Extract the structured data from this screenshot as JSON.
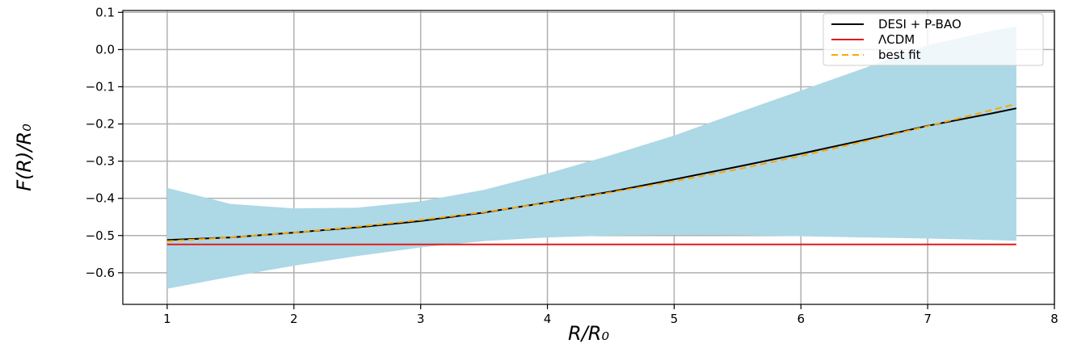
{
  "chart_data": {
    "type": "line",
    "xlabel": "R/R₀",
    "ylabel": "F(R)/R₀",
    "xlim": [
      0.65,
      8.0
    ],
    "ylim": [
      -0.685,
      0.105
    ],
    "xticks": [
      1,
      2,
      3,
      4,
      5,
      6,
      7,
      8
    ],
    "xtick_labels": [
      "1",
      "2",
      "3",
      "4",
      "5",
      "6",
      "7",
      "8"
    ],
    "yticks": [
      -0.6,
      -0.5,
      -0.4,
      -0.3,
      -0.2,
      -0.1,
      0.0,
      0.1
    ],
    "ytick_labels": [
      "−0.6",
      "−0.5",
      "−0.4",
      "−0.3",
      "−0.2",
      "−0.1",
      "0.0",
      "0.1"
    ],
    "grid": true,
    "legend_position": "top-right",
    "band": {
      "color": "#add8e6",
      "x": [
        1.0,
        1.5,
        2.0,
        2.5,
        3.0,
        3.5,
        4.0,
        4.5,
        5.0,
        5.5,
        6.0,
        6.5,
        7.0,
        7.5,
        7.7
      ],
      "upper": [
        -0.372,
        -0.415,
        -0.427,
        -0.425,
        -0.408,
        -0.377,
        -0.333,
        -0.284,
        -0.231,
        -0.17,
        -0.11,
        -0.05,
        0.012,
        0.05,
        0.062
      ],
      "lower": [
        -0.643,
        -0.611,
        -0.581,
        -0.555,
        -0.532,
        -0.515,
        -0.505,
        -0.5,
        -0.498,
        -0.499,
        -0.502,
        -0.505,
        -0.508,
        -0.512,
        -0.514
      ]
    },
    "series": [
      {
        "name": "DESI + P-BAO",
        "color": "#000000",
        "style": "solid",
        "x": [
          1.0,
          1.5,
          2.0,
          2.5,
          3.0,
          3.5,
          4.0,
          4.5,
          5.0,
          5.5,
          6.0,
          6.5,
          7.0,
          7.5,
          7.7
        ],
        "y": [
          -0.512,
          -0.505,
          -0.492,
          -0.478,
          -0.461,
          -0.438,
          -0.411,
          -0.382,
          -0.349,
          -0.315,
          -0.28,
          -0.243,
          -0.205,
          -0.172,
          -0.158
        ]
      },
      {
        "name": "ΛCDM",
        "color": "#e31a1c",
        "style": "solid",
        "x": [
          1.0,
          7.7
        ],
        "y": [
          -0.524,
          -0.524
        ]
      },
      {
        "name": "best fit",
        "color": "#ffa500",
        "style": "dashed",
        "x": [
          1.0,
          1.5,
          2.0,
          2.5,
          3.0,
          3.5,
          4.0,
          4.5,
          5.0,
          5.5,
          6.0,
          6.5,
          7.0,
          7.5,
          7.7
        ],
        "y": [
          -0.515,
          -0.505,
          -0.492,
          -0.476,
          -0.458,
          -0.437,
          -0.412,
          -0.384,
          -0.354,
          -0.322,
          -0.286,
          -0.247,
          -0.206,
          -0.163,
          -0.146
        ]
      }
    ]
  }
}
